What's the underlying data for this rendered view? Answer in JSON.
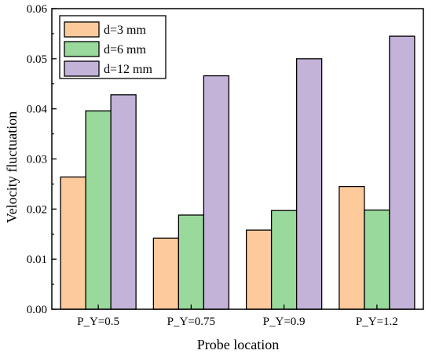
{
  "chart_data": {
    "type": "bar",
    "title": "",
    "xlabel": "Probe location",
    "ylabel": "Velocity fluctuation",
    "categories": [
      "P_Y=0.5",
      "P_Y=0.75",
      "P_Y=0.9",
      "P_Y=1.2"
    ],
    "series": [
      {
        "name": "d=3 mm",
        "color": "#fdcb9b",
        "values": [
          0.0264,
          0.0142,
          0.0158,
          0.0245
        ]
      },
      {
        "name": "d=6 mm",
        "color": "#9ad99c",
        "values": [
          0.0396,
          0.0188,
          0.0197,
          0.0198
        ]
      },
      {
        "name": "d=12 mm",
        "color": "#c3b3d9",
        "values": [
          0.0428,
          0.0466,
          0.05,
          0.0545
        ]
      }
    ],
    "ylim": [
      0,
      0.06
    ],
    "yticks": [
      "0.00",
      "0.01",
      "0.02",
      "0.03",
      "0.04",
      "0.05",
      "0.06"
    ],
    "grid": false,
    "legend_position": "top-left"
  }
}
